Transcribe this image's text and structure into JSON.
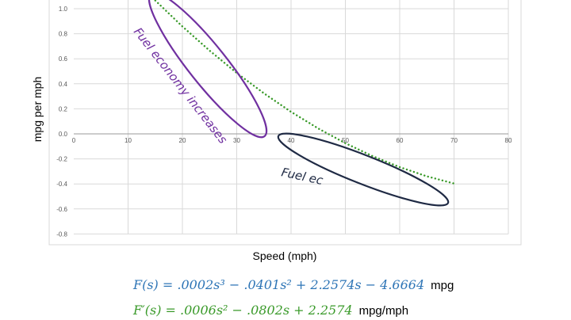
{
  "chart_data": {
    "type": "line",
    "xlabel": "Speed (mph)",
    "ylabel": "mpg per mph",
    "xlim": [
      0,
      80
    ],
    "ylim": [
      -0.8,
      1.0
    ],
    "x_ticks": [
      0,
      10,
      20,
      30,
      40,
      50,
      60,
      70,
      80
    ],
    "y_ticks": [
      1.0,
      0.8,
      0.6,
      0.4,
      0.2,
      0.0,
      -0.2,
      -0.4,
      -0.6,
      -0.8
    ],
    "grid": true,
    "series": [
      {
        "name": "",
        "style": "dotted",
        "color": "#3a9a2a",
        "x": [
          15,
          20,
          25,
          30,
          35,
          40,
          45,
          50,
          55,
          60,
          65,
          70
        ],
        "y": [
          1.066,
          0.858,
          0.665,
          0.487,
          0.324,
          0.176,
          0.043,
          -0.075,
          -0.178,
          -0.266,
          -0.339,
          -0.397
        ]
      }
    ],
    "annotations": [
      {
        "text": "Fuel economy increases",
        "color": "#7030a0"
      },
      {
        "text": "Fuel ec",
        "color": "#1f2a44"
      }
    ]
  },
  "formulas": {
    "f_text": "F(s) = .0002s³ − .0401s² + 2.2574s − 4.6664",
    "f_unit": "mpg",
    "fp_text": "F′(s) = .0006s² − .0802s + 2.2574",
    "fp_unit": "mpg/mph"
  },
  "colors": {
    "increase_ellipse": "#7030a0",
    "decrease_ellipse": "#1f2a44",
    "series": "#3a9a2a",
    "f_formula": "#2e75b6",
    "fp_formula": "#3a9a2a"
  }
}
